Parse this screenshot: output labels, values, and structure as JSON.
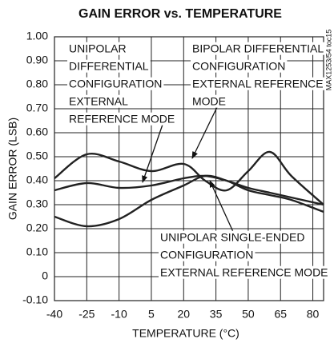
{
  "chart_data": {
    "type": "line",
    "title": "GAIN ERROR vs. TEMPERATURE",
    "xlabel": "TEMPERATURE (°C)",
    "ylabel": "GAIN ERROR (LSB)",
    "side_note": "MAX1253/54 toc15",
    "x": [
      -40,
      -25,
      -10,
      5,
      20,
      30,
      40,
      50,
      60,
      70,
      85
    ],
    "series": [
      {
        "color": "#222222",
        "values": [
          0.41,
          0.51,
          0.48,
          0.44,
          0.47,
          0.4,
          0.36,
          0.44,
          0.52,
          0.42,
          0.3
        ]
      },
      {
        "color": "#222222",
        "values": [
          0.36,
          0.39,
          0.37,
          0.38,
          0.41,
          0.42,
          0.4,
          0.37,
          0.35,
          0.33,
          0.3
        ]
      },
      {
        "color": "#222222",
        "values": [
          0.25,
          0.21,
          0.24,
          0.32,
          0.38,
          0.42,
          0.4,
          0.36,
          0.34,
          0.32,
          0.27
        ]
      }
    ],
    "annotations": [
      [
        "UNIPOLAR",
        "DIFFERENTIAL",
        "CONFIGURATION",
        "EXTERNAL",
        "REFERENCE MODE"
      ],
      [
        "BIPOLAR DIFFERENTIAL",
        "CONFIGURATION",
        "EXTERNAL REFERENCE",
        "MODE"
      ],
      [
        "UNIPOLAR SINGLE-ENDED",
        "CONFIGURATION",
        "EXTERNAL REFERENCE MODE"
      ]
    ],
    "xlim": [
      -40,
      85
    ],
    "ylim": [
      -0.1,
      1.0
    ],
    "xticks": [
      -40,
      -25,
      -10,
      5,
      20,
      35,
      50,
      65,
      80
    ],
    "yticks": [
      {
        "value": -0.1,
        "label": "-0.10"
      },
      0,
      {
        "value": 0.1,
        "label": "0.10"
      },
      {
        "value": 0.2,
        "label": "0.20"
      },
      {
        "value": 0.3,
        "label": "0.30"
      },
      {
        "value": 0.4,
        "label": "0.40"
      },
      {
        "value": 0.5,
        "label": "0.50"
      },
      {
        "value": 0.6,
        "label": "0.60"
      },
      {
        "value": 0.7,
        "label": "0.70"
      },
      {
        "value": 0.8,
        "label": "0.80"
      },
      {
        "value": 0.9,
        "label": "0.90"
      },
      {
        "value": 1.0,
        "label": "1.00"
      }
    ],
    "grid": true
  }
}
